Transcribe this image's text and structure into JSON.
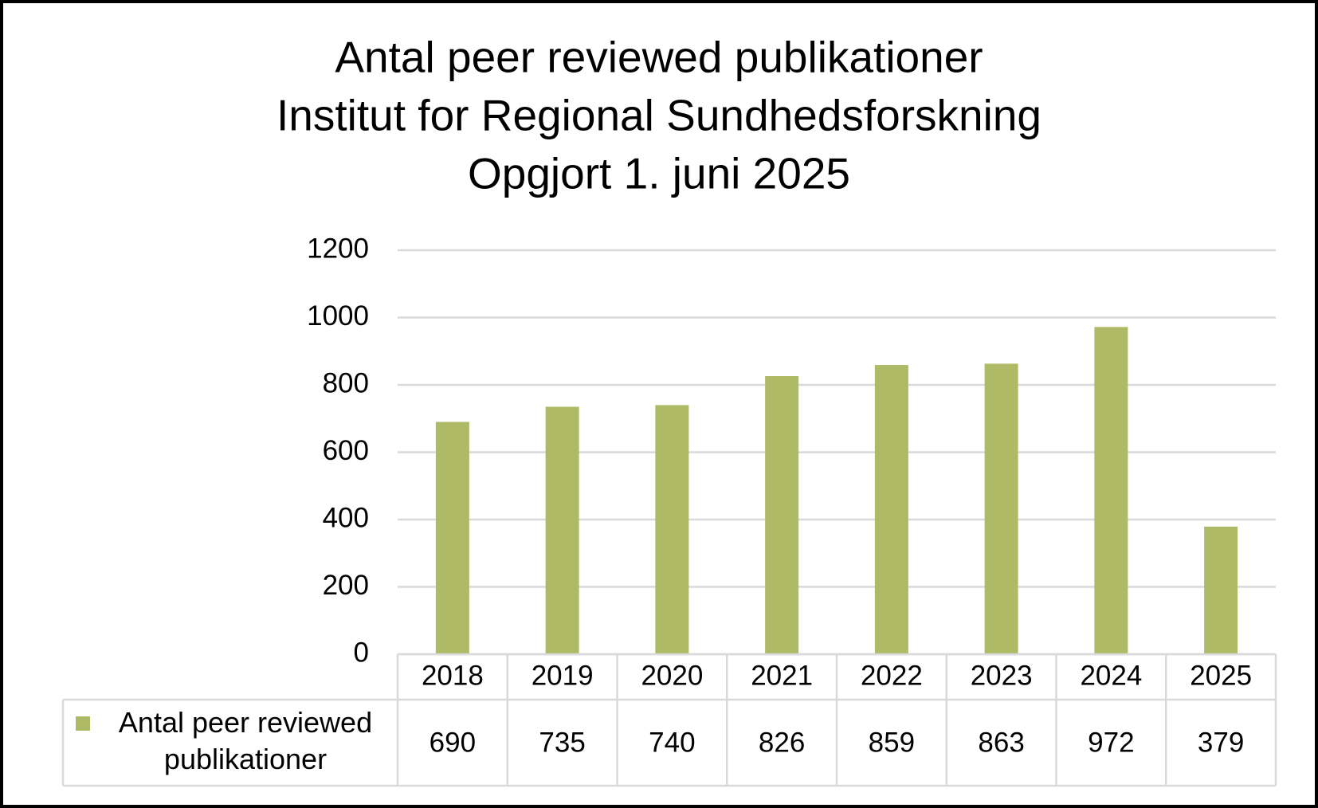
{
  "chart_data": {
    "type": "bar",
    "title": "Antal peer reviewed publikationer",
    "subtitle": [
      "Institut for Regional Sundhedsforskning",
      "Opgjort 1. juni 2025"
    ],
    "categories": [
      "2018",
      "2019",
      "2020",
      "2021",
      "2022",
      "2023",
      "2024",
      "2025"
    ],
    "series": [
      {
        "name": "Antal peer reviewed publikationer",
        "color": "#afba66",
        "values": [
          690,
          735,
          740,
          826,
          859,
          863,
          972,
          379
        ]
      }
    ],
    "ylim": [
      0,
      1200
    ],
    "yticks": [
      0,
      200,
      400,
      600,
      800,
      1000,
      1200
    ],
    "grid": true,
    "data_table": true
  }
}
